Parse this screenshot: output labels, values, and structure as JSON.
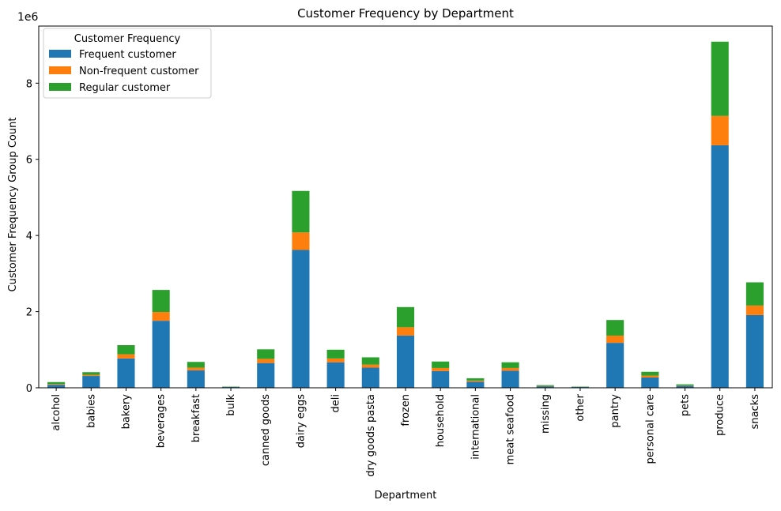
{
  "chart_data": {
    "type": "bar",
    "stacked": true,
    "title": "Customer Frequency by Department",
    "xlabel": "Department",
    "ylabel": "Customer Frequency Group Count",
    "y_offset_label": "1e6",
    "ylim": [
      0,
      9.5
    ],
    "yticks": [
      0,
      2,
      4,
      6,
      8
    ],
    "grid": false,
    "legend": {
      "title": "Customer Frequency",
      "placement": "top-left"
    },
    "categories": [
      "alcohol",
      "babies",
      "bakery",
      "beverages",
      "breakfast",
      "bulk",
      "canned goods",
      "dairy eggs",
      "deli",
      "dry goods pasta",
      "frozen",
      "household",
      "international",
      "meat seafood",
      "missing",
      "other",
      "pantry",
      "personal care",
      "pets",
      "produce",
      "snacks"
    ],
    "series": [
      {
        "name": "Frequent customer",
        "color": "#1f77b4",
        "values": [
          0.08,
          0.31,
          0.77,
          1.76,
          0.46,
          0.02,
          0.65,
          3.62,
          0.67,
          0.53,
          1.37,
          0.44,
          0.16,
          0.45,
          0.04,
          0.02,
          1.18,
          0.27,
          0.05,
          6.37,
          1.91
        ]
      },
      {
        "name": "Non-frequent customer",
        "color": "#ff7f0e",
        "values": [
          0.02,
          0.03,
          0.11,
          0.23,
          0.07,
          0.0,
          0.11,
          0.46,
          0.1,
          0.08,
          0.22,
          0.08,
          0.03,
          0.07,
          0.01,
          0.0,
          0.19,
          0.05,
          0.01,
          0.77,
          0.25
        ]
      },
      {
        "name": "Regular customer",
        "color": "#2ca02c",
        "values": [
          0.05,
          0.07,
          0.24,
          0.58,
          0.15,
          0.01,
          0.25,
          1.09,
          0.23,
          0.19,
          0.53,
          0.17,
          0.06,
          0.15,
          0.02,
          0.01,
          0.41,
          0.1,
          0.03,
          1.95,
          0.61
        ]
      }
    ]
  }
}
